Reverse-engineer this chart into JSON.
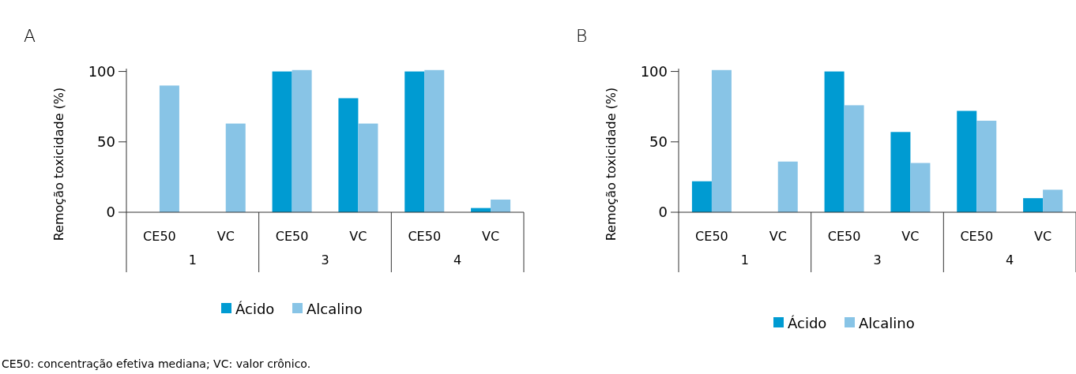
{
  "chart_data": [
    {
      "type": "bar",
      "title": "A",
      "ylabel": "Remoção toxicidade (%)",
      "categories": [
        "CE50",
        "VC",
        "CE50",
        "VC",
        "CE50",
        "VC"
      ],
      "series": [
        {
          "name": "Ácido",
          "color": "#009bd2",
          "values": [
            null,
            null,
            100,
            81,
            100,
            3
          ]
        },
        {
          "name": "Alcalino",
          "color": "#88c4e6",
          "values": [
            90,
            63,
            101,
            63,
            101,
            9
          ]
        }
      ],
      "ylim": [
        0,
        102
      ],
      "yticks": [
        0,
        50,
        100
      ],
      "legend": "bottom",
      "annotations": [
        "1",
        "3",
        "4",
        "CE50: concentração efetiva mediana; VC: valor crônico."
      ]
    },
    {
      "type": "bar",
      "title": "B",
      "ylabel": "Remoção toxicidade (%)",
      "categories": [
        "CE50",
        "VC",
        "CE50",
        "VC",
        "CE50",
        "VC"
      ],
      "series": [
        {
          "name": "Ácido",
          "color": "#009bd2",
          "values": [
            22,
            null,
            100,
            57,
            72,
            10
          ]
        },
        {
          "name": "Alcalino",
          "color": "#88c4e6",
          "values": [
            101,
            36,
            76,
            35,
            65,
            16
          ]
        }
      ],
      "ylim": [
        0,
        102
      ],
      "yticks": [
        0,
        50,
        100
      ],
      "legend": "bottom",
      "annotations": [
        "1",
        "3",
        "4"
      ]
    }
  ]
}
